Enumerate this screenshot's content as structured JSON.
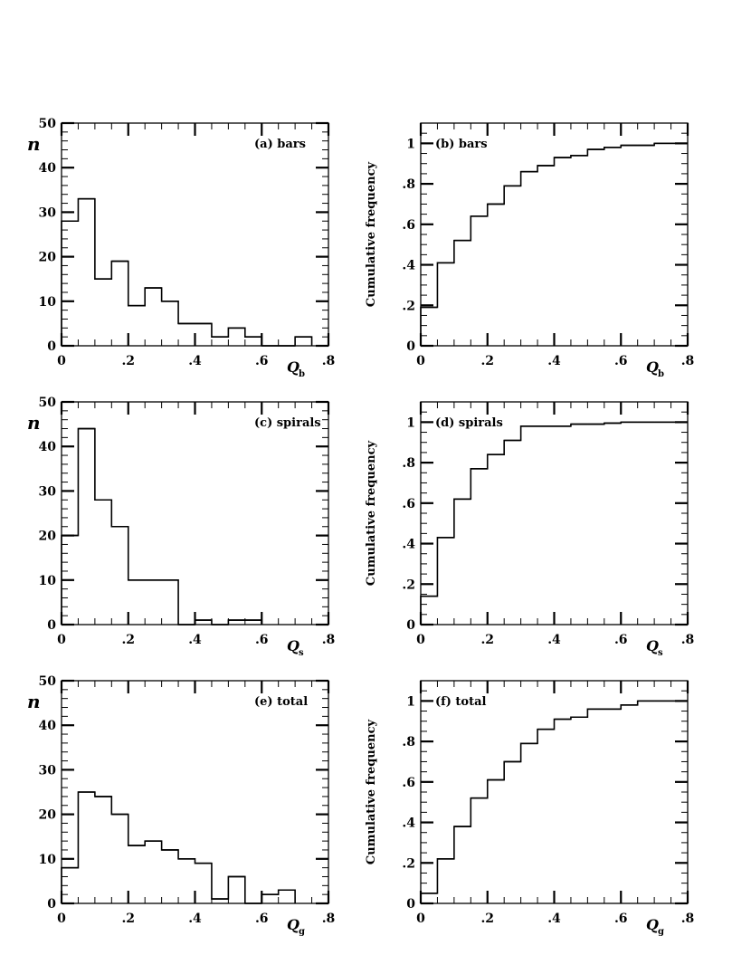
{
  "chart_data": [
    {
      "id": "a",
      "type": "bar",
      "kind": "histogram",
      "title": "(a) bars",
      "xlabel": "Q",
      "xlabel_sub": "b",
      "ylabel": "n",
      "xlim": [
        0,
        0.8
      ],
      "ylim": [
        0,
        50
      ],
      "x_ticks": [
        "0",
        ".2",
        ".4",
        ".6",
        ".8"
      ],
      "y_ticks": [
        "0",
        "10",
        "20",
        "30",
        "40",
        "50"
      ],
      "bin_edges": [
        0,
        0.05,
        0.1,
        0.15,
        0.2,
        0.25,
        0.3,
        0.35,
        0.4,
        0.45,
        0.5,
        0.55,
        0.6,
        0.65,
        0.7,
        0.75
      ],
      "values": [
        28,
        33,
        15,
        19,
        9,
        13,
        10,
        5,
        5,
        2,
        4,
        2,
        0,
        0,
        2
      ]
    },
    {
      "id": "b",
      "type": "line",
      "kind": "cumulative",
      "title": "(b) bars",
      "xlabel": "Q",
      "xlabel_sub": "b",
      "ylabel": "Cumulative frequency",
      "xlim": [
        0,
        0.8
      ],
      "ylim": [
        0,
        1.1
      ],
      "x_ticks": [
        "0",
        ".2",
        ".4",
        ".6",
        ".8"
      ],
      "y_ticks": [
        "0",
        ".2",
        ".4",
        ".6",
        ".8",
        "1"
      ],
      "bin_edges": [
        0,
        0.05,
        0.1,
        0.15,
        0.2,
        0.25,
        0.3,
        0.35,
        0.4,
        0.45,
        0.5,
        0.55,
        0.6,
        0.65,
        0.7,
        0.75,
        0.8
      ],
      "values": [
        0.19,
        0.41,
        0.52,
        0.64,
        0.7,
        0.79,
        0.86,
        0.89,
        0.93,
        0.94,
        0.97,
        0.98,
        0.99,
        0.99,
        1.0,
        1.0
      ]
    },
    {
      "id": "c",
      "type": "bar",
      "kind": "histogram",
      "title": "(c) spirals",
      "xlabel": "Q",
      "xlabel_sub": "s",
      "ylabel": "n",
      "xlim": [
        0,
        0.8
      ],
      "ylim": [
        0,
        50
      ],
      "x_ticks": [
        "0",
        ".2",
        ".4",
        ".6",
        ".8"
      ],
      "y_ticks": [
        "0",
        "10",
        "20",
        "30",
        "40",
        "50"
      ],
      "bin_edges": [
        0,
        0.05,
        0.1,
        0.15,
        0.2,
        0.25,
        0.3,
        0.35,
        0.4,
        0.45,
        0.5,
        0.55,
        0.6
      ],
      "values": [
        20,
        44,
        28,
        22,
        10,
        10,
        10,
        0,
        1,
        0,
        1,
        1
      ]
    },
    {
      "id": "d",
      "type": "line",
      "kind": "cumulative",
      "title": "(d) spirals",
      "xlabel": "Q",
      "xlabel_sub": "s",
      "ylabel": "Cumulative frequency",
      "xlim": [
        0,
        0.8
      ],
      "ylim": [
        0,
        1.1
      ],
      "x_ticks": [
        "0",
        ".2",
        ".4",
        ".6",
        ".8"
      ],
      "y_ticks": [
        "0",
        ".2",
        ".4",
        ".6",
        ".8",
        "1"
      ],
      "bin_edges": [
        0,
        0.05,
        0.1,
        0.15,
        0.2,
        0.25,
        0.3,
        0.35,
        0.4,
        0.45,
        0.5,
        0.55,
        0.6,
        0.65,
        0.7,
        0.75,
        0.8
      ],
      "values": [
        0.14,
        0.43,
        0.62,
        0.77,
        0.84,
        0.91,
        0.98,
        0.98,
        0.98,
        0.99,
        0.99,
        0.995,
        1.0,
        1.0,
        1.0,
        1.0
      ]
    },
    {
      "id": "e",
      "type": "bar",
      "kind": "histogram",
      "title": "(e) total",
      "xlabel": "Q",
      "xlabel_sub": "g",
      "ylabel": "n",
      "xlim": [
        0,
        0.8
      ],
      "ylim": [
        0,
        50
      ],
      "x_ticks": [
        "0",
        ".2",
        ".4",
        ".6",
        ".8"
      ],
      "y_ticks": [
        "0",
        "10",
        "20",
        "30",
        "40",
        "50"
      ],
      "bin_edges": [
        0,
        0.05,
        0.1,
        0.15,
        0.2,
        0.25,
        0.3,
        0.35,
        0.4,
        0.45,
        0.5,
        0.55,
        0.6,
        0.65,
        0.7
      ],
      "values": [
        8,
        25,
        24,
        20,
        13,
        14,
        12,
        10,
        9,
        1,
        6,
        0,
        2,
        3
      ]
    },
    {
      "id": "f",
      "type": "line",
      "kind": "cumulative",
      "title": "(f) total",
      "xlabel": "Q",
      "xlabel_sub": "g",
      "ylabel": "Cumulative frequency",
      "xlim": [
        0,
        0.8
      ],
      "ylim": [
        0,
        1.1
      ],
      "x_ticks": [
        "0",
        ".2",
        ".4",
        ".6",
        ".8"
      ],
      "y_ticks": [
        "0",
        ".2",
        ".4",
        ".6",
        ".8",
        "1"
      ],
      "bin_edges": [
        0,
        0.05,
        0.1,
        0.15,
        0.2,
        0.25,
        0.3,
        0.35,
        0.4,
        0.45,
        0.5,
        0.55,
        0.6,
        0.65,
        0.7,
        0.75,
        0.8
      ],
      "values": [
        0.05,
        0.22,
        0.38,
        0.52,
        0.61,
        0.7,
        0.79,
        0.86,
        0.91,
        0.92,
        0.96,
        0.96,
        0.98,
        1.0,
        1.0,
        1.0
      ]
    }
  ]
}
